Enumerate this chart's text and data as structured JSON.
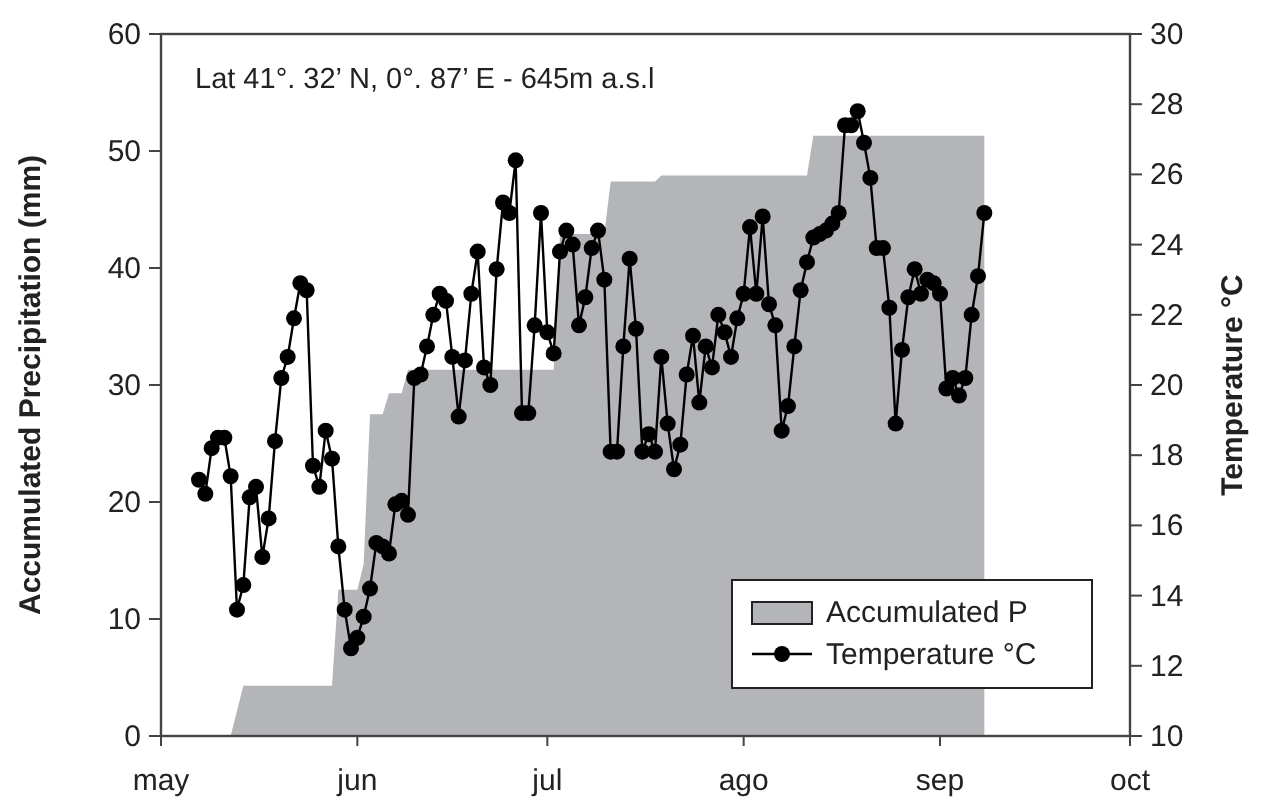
{
  "chart_data": {
    "type": "line",
    "xlabel": null,
    "ylabel": "Accumulated Precipitation (mm)",
    "y2label": "Temperature °C",
    "annotations": [
      "Lat 41°. 32’ N, 0°. 87’ E - 645m a.s.l"
    ],
    "xlim": [
      "--05-01",
      "--10-01"
    ],
    "xticks": [
      {
        "value": "--05-01",
        "label": "may"
      },
      {
        "value": "--06-01",
        "label": "jun"
      },
      {
        "value": "--07-01",
        "label": "jul"
      },
      {
        "value": "--08-01",
        "label": "ago"
      },
      {
        "value": "--09-01",
        "label": "sep"
      },
      {
        "value": "--10-01",
        "label": "oct"
      }
    ],
    "ylim": [
      0,
      60
    ],
    "yticks": [
      0,
      10,
      20,
      30,
      40,
      50,
      60
    ],
    "y2lim": [
      10,
      30
    ],
    "y2ticks": [
      10,
      12,
      14,
      16,
      18,
      20,
      22,
      24,
      26,
      28,
      30
    ],
    "grid": false,
    "legend": "bottom right",
    "series": [
      {
        "name": "Accumulated P",
        "type": "area",
        "color": "#b3b5b8",
        "x": [
          "--05-12",
          "--05-14",
          "--05-28",
          "--05-29",
          "--06-01",
          "--06-02",
          "--06-02",
          "--06-03",
          "--06-05",
          "--06-06",
          "--06-08",
          "--06-09",
          "--07-02",
          "--07-03",
          "--07-10",
          "--07-11",
          "--07-18",
          "--07-19",
          "--08-11",
          "--08-12",
          "--09-08"
        ],
        "values": [
          0,
          4.3,
          4.3,
          12.5,
          12.5,
          14.7,
          14.7,
          27.5,
          27.5,
          29.3,
          29.3,
          31.3,
          31.3,
          42.9,
          42.9,
          47.4,
          47.4,
          47.9,
          47.9,
          51.3,
          51.3
        ]
      },
      {
        "name": "Temperature °C",
        "axis": "y2",
        "color": "#000000",
        "marker": "circle",
        "line_style": "solid",
        "x": [
          "--05-07",
          "--05-08",
          "--05-09",
          "--05-10",
          "--05-11",
          "--05-12",
          "--05-13",
          "--05-14",
          "--05-15",
          "--05-16",
          "--05-17",
          "--05-18",
          "--05-19",
          "--05-20",
          "--05-21",
          "--05-22",
          "--05-23",
          "--05-24",
          "--05-25",
          "--05-26",
          "--05-27",
          "--05-28",
          "--05-29",
          "--05-30",
          "--05-31",
          "--06-01",
          "--06-02",
          "--06-03",
          "--06-04",
          "--06-05",
          "--06-06",
          "--06-07",
          "--06-08",
          "--06-09",
          "--06-10",
          "--06-11",
          "--06-12",
          "--06-13",
          "--06-14",
          "--06-15",
          "--06-16",
          "--06-17",
          "--06-18",
          "--06-19",
          "--06-20",
          "--06-21",
          "--06-22",
          "--06-23",
          "--06-24",
          "--06-25",
          "--06-26",
          "--06-27",
          "--06-28",
          "--06-29",
          "--06-30",
          "--07-01",
          "--07-02",
          "--07-03",
          "--07-04",
          "--07-05",
          "--07-06",
          "--07-07",
          "--07-08",
          "--07-09",
          "--07-10",
          "--07-11",
          "--07-12",
          "--07-13",
          "--07-14",
          "--07-15",
          "--07-16",
          "--07-17",
          "--07-18",
          "--07-19",
          "--07-20",
          "--07-21",
          "--07-22",
          "--07-23",
          "--07-24",
          "--07-25",
          "--07-26",
          "--07-27",
          "--07-28",
          "--07-29",
          "--07-30",
          "--07-31",
          "--08-01",
          "--08-02",
          "--08-03",
          "--08-04",
          "--08-05",
          "--08-06",
          "--08-07",
          "--08-08",
          "--08-09",
          "--08-10",
          "--08-11",
          "--08-12",
          "--08-13",
          "--08-14",
          "--08-15",
          "--08-16",
          "--08-17",
          "--08-18",
          "--08-19",
          "--08-20",
          "--08-21",
          "--08-22",
          "--08-23",
          "--08-24",
          "--08-25",
          "--08-26",
          "--08-27",
          "--08-28",
          "--08-29",
          "--08-30",
          "--08-31",
          "--09-01",
          "--09-02",
          "--09-03",
          "--09-04",
          "--09-05",
          "--09-06",
          "--09-07",
          "--09-08"
        ],
        "values": [
          17.3,
          16.9,
          18.2,
          18.5,
          18.5,
          17.4,
          13.6,
          14.3,
          16.8,
          17.1,
          15.1,
          16.2,
          18.4,
          20.2,
          20.8,
          21.9,
          22.9,
          22.7,
          17.7,
          17.1,
          18.7,
          17.9,
          15.4,
          13.6,
          12.5,
          12.8,
          13.4,
          14.2,
          15.5,
          15.4,
          15.2,
          16.6,
          16.7,
          16.3,
          20.2,
          20.3,
          21.1,
          22.0,
          22.6,
          22.4,
          20.8,
          19.1,
          20.7,
          22.6,
          23.8,
          20.5,
          20.0,
          23.3,
          25.2,
          24.9,
          26.4,
          19.2,
          19.2,
          21.7,
          24.9,
          21.5,
          20.9,
          23.8,
          24.4,
          24.0,
          21.7,
          22.5,
          23.9,
          24.4,
          23.0,
          18.1,
          18.1,
          21.1,
          23.6,
          21.6,
          18.1,
          18.6,
          18.1,
          20.8,
          18.9,
          17.6,
          18.3,
          20.3,
          21.4,
          19.5,
          21.1,
          20.5,
          22.0,
          21.5,
          20.8,
          21.9,
          22.6,
          24.5,
          22.6,
          24.8,
          22.3,
          21.7,
          18.7,
          19.4,
          21.1,
          22.7,
          23.5,
          24.2,
          24.3,
          24.4,
          24.6,
          24.9,
          27.4,
          27.4,
          27.8,
          26.9,
          25.9,
          23.9,
          23.9,
          22.2,
          18.9,
          21.0,
          22.5,
          23.3,
          22.6,
          23.0,
          22.9,
          22.6,
          19.9,
          20.2,
          19.7,
          20.2,
          22.0,
          23.1,
          24.9
        ]
      }
    ]
  }
}
